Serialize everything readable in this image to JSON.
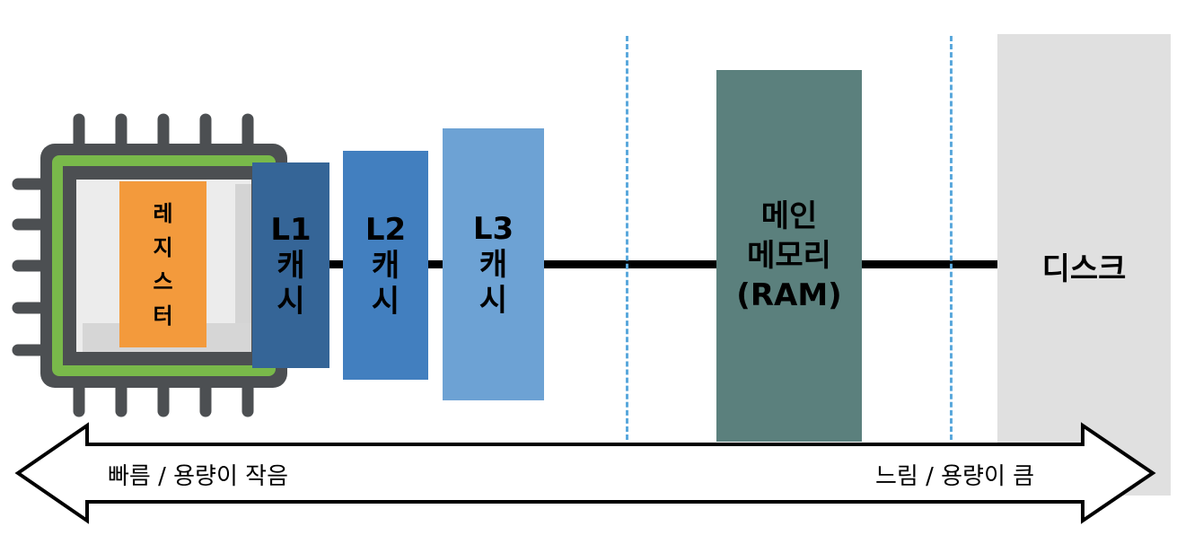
{
  "colors": {
    "register": "#f39a3c",
    "l1": "#356597",
    "l2": "#427fbf",
    "l3": "#6da2d4",
    "ram": "#5b807d",
    "disk": "#e0e0e0",
    "chip_green": "#79b94a",
    "chip_dark": "#4c4f52",
    "bus_line": "#000000",
    "divider": "#5aa8dc"
  },
  "register": {
    "chars": [
      "레",
      "지",
      "스",
      "터"
    ]
  },
  "caches": [
    {
      "name": "L1",
      "chars": [
        "캐",
        "시"
      ]
    },
    {
      "name": "L2",
      "chars": [
        "캐",
        "시"
      ]
    },
    {
      "name": "L3",
      "chars": [
        "캐",
        "시"
      ]
    }
  ],
  "ram": {
    "line1": "메인",
    "line2": "메모리",
    "line3": "(RAM)"
  },
  "disk": {
    "label": "디스크"
  },
  "arrow": {
    "left_label": "빠름 / 용량이 작음",
    "right_label": "느림 / 용량이 큼"
  },
  "icons": {
    "cpu": "cpu-chip-icon"
  }
}
